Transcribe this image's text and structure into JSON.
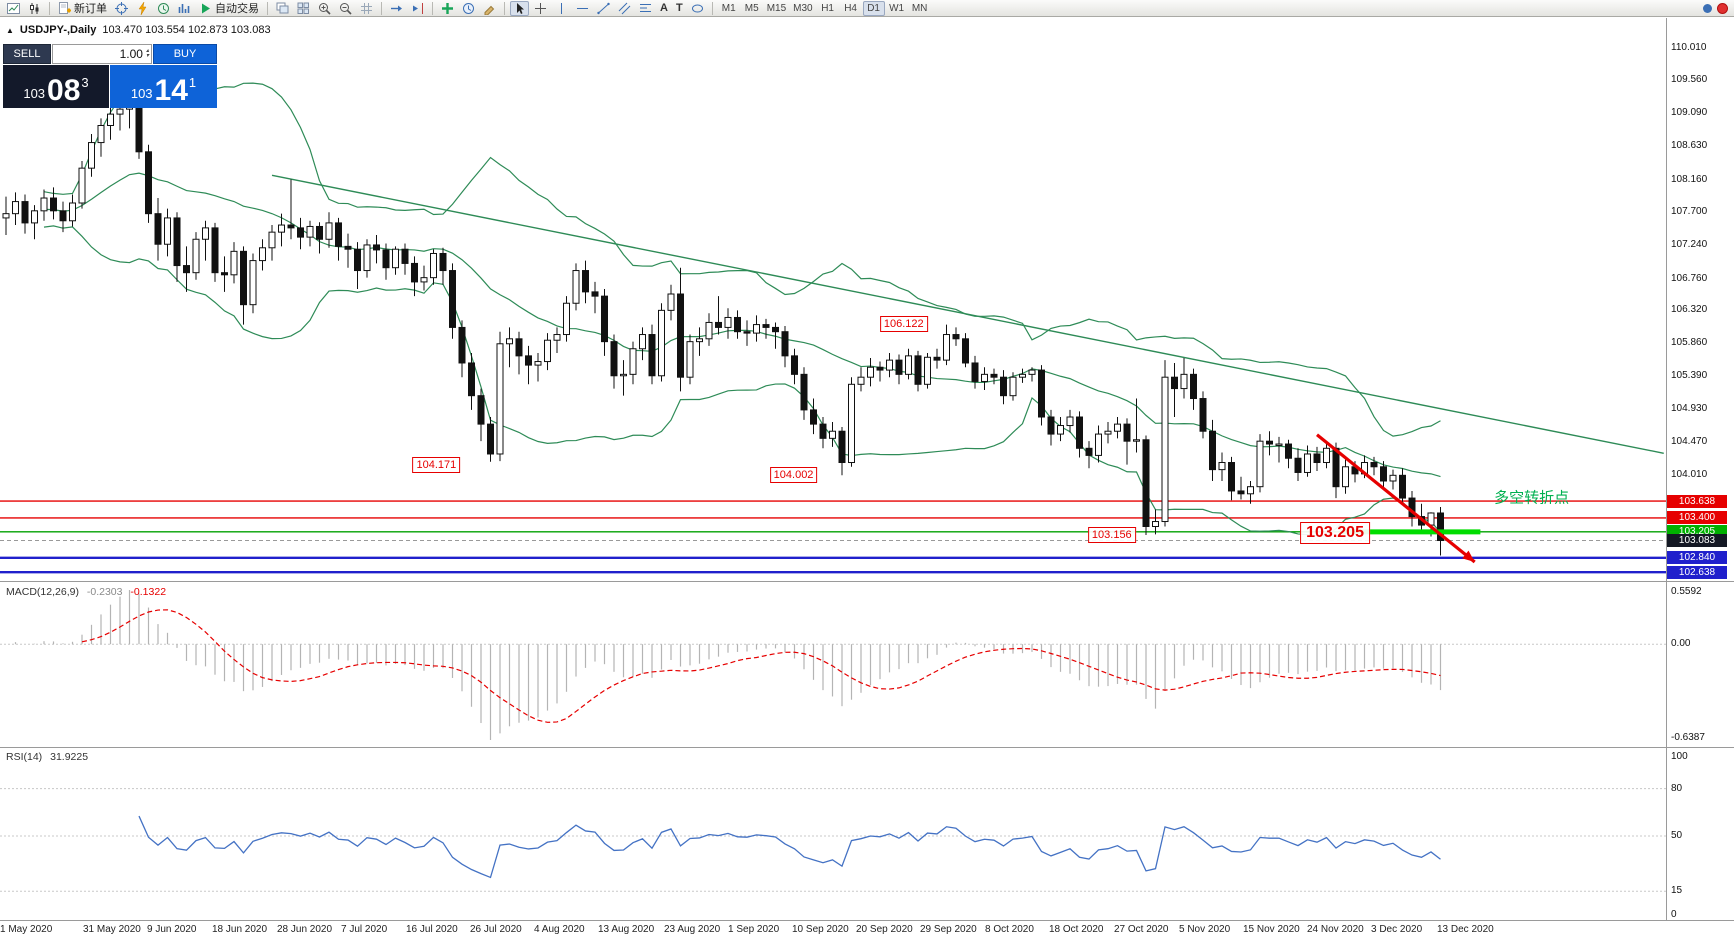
{
  "toolbar": {
    "new_order_label": "新订单",
    "autotrade_label": "自动交易",
    "text_tool_label": "A",
    "label_tool_label": "T",
    "timeframes": [
      "M1",
      "M5",
      "M15",
      "M30",
      "H1",
      "H4",
      "D1",
      "W1",
      "MN"
    ],
    "active_timeframe": "D1"
  },
  "chart_title": {
    "expand_icon": "▲",
    "symbol": "USDJPY-,Daily",
    "ohlc": "103.470 103.554 102.873 103.083"
  },
  "trade_panel": {
    "sell_label": "SELL",
    "buy_label": "BUY",
    "volume": "1.00",
    "sell_price_prefix": "103",
    "sell_price_main": "08",
    "sell_price_sup": "3",
    "buy_price_prefix": "103",
    "buy_price_main": "14",
    "buy_price_sup": "1"
  },
  "chart_data": {
    "type": "candlestick",
    "symbol": "USDJPY",
    "timeframe": "Daily",
    "current_ohlc": [
      103.47,
      103.554,
      102.873,
      103.083
    ],
    "y_axis_visible_range": [
      102.51,
      110.68
    ],
    "y_ticks": [
      "110.010",
      "109.560",
      "109.090",
      "108.630",
      "108.160",
      "107.700",
      "107.240",
      "106.760",
      "106.320",
      "105.860",
      "105.390",
      "104.930",
      "104.470",
      "104.010"
    ],
    "x_labels": [
      "1 May 2020",
      "31 May 2020",
      "9 Jun 2020",
      "18 Jun 2020",
      "28 Jun 2020",
      "7 Jul 2020",
      "16 Jul 2020",
      "26 Jul 2020",
      "4 Aug 2020",
      "13 Aug 2020",
      "23 Aug 2020",
      "1 Sep 2020",
      "10 Sep 2020",
      "20 Sep 2020",
      "29 Sep 2020",
      "8 Oct 2020",
      "18 Oct 2020",
      "27 Oct 2020",
      "5 Nov 2020",
      "15 Nov 2020",
      "24 Nov 2020",
      "3 Dec 2020",
      "13 Dec 2020"
    ],
    "candles": [
      [
        107.62,
        107.92,
        107.38,
        107.68
      ],
      [
        107.68,
        107.98,
        107.52,
        107.85
      ],
      [
        107.85,
        107.95,
        107.4,
        107.55
      ],
      [
        107.55,
        107.8,
        107.32,
        107.72
      ],
      [
        107.72,
        108.02,
        107.58,
        107.9
      ],
      [
        107.9,
        108.05,
        107.6,
        107.72
      ],
      [
        107.72,
        107.85,
        107.42,
        107.58
      ],
      [
        107.58,
        107.95,
        107.5,
        107.83
      ],
      [
        107.83,
        108.42,
        107.75,
        108.32
      ],
      [
        108.32,
        108.8,
        108.2,
        108.68
      ],
      [
        108.68,
        109.02,
        108.48,
        108.92
      ],
      [
        108.92,
        109.18,
        108.72,
        109.08
      ],
      [
        109.08,
        109.25,
        108.85,
        109.15
      ],
      [
        109.15,
        109.32,
        108.88,
        109.22
      ],
      [
        109.22,
        109.3,
        108.45,
        108.55
      ],
      [
        108.55,
        108.65,
        107.55,
        107.68
      ],
      [
        107.68,
        107.9,
        107.02,
        107.25
      ],
      [
        107.25,
        107.75,
        107.08,
        107.62
      ],
      [
        107.62,
        107.7,
        106.72,
        106.95
      ],
      [
        106.95,
        107.22,
        106.58,
        106.85
      ],
      [
        106.85,
        107.42,
        106.75,
        107.32
      ],
      [
        107.32,
        107.58,
        107.02,
        107.48
      ],
      [
        107.48,
        107.55,
        106.72,
        106.85
      ],
      [
        106.85,
        107.08,
        106.58,
        106.82
      ],
      [
        106.82,
        107.28,
        106.7,
        107.15
      ],
      [
        107.15,
        107.22,
        106.12,
        106.4
      ],
      [
        106.4,
        107.12,
        106.28,
        107.02
      ],
      [
        107.02,
        107.32,
        106.88,
        107.2
      ],
      [
        107.2,
        107.52,
        107.02,
        107.42
      ],
      [
        107.42,
        107.68,
        107.22,
        107.52
      ],
      [
        107.52,
        108.16,
        107.32,
        107.48
      ],
      [
        107.48,
        107.62,
        107.18,
        107.35
      ],
      [
        107.35,
        107.58,
        107.22,
        107.5
      ],
      [
        107.5,
        107.56,
        107.12,
        107.32
      ],
      [
        107.32,
        107.7,
        107.2,
        107.55
      ],
      [
        107.55,
        107.62,
        107.02,
        107.22
      ],
      [
        107.22,
        107.4,
        106.92,
        107.18
      ],
      [
        107.18,
        107.28,
        106.62,
        106.88
      ],
      [
        106.88,
        107.32,
        106.78,
        107.24
      ],
      [
        107.24,
        107.38,
        106.98,
        107.17
      ],
      [
        107.17,
        107.26,
        106.75,
        106.92
      ],
      [
        106.92,
        107.22,
        106.82,
        107.18
      ],
      [
        107.18,
        107.26,
        106.82,
        106.98
      ],
      [
        106.98,
        107.08,
        106.52,
        106.72
      ],
      [
        106.72,
        106.95,
        106.6,
        106.78
      ],
      [
        106.78,
        107.18,
        106.68,
        107.12
      ],
      [
        107.12,
        107.2,
        106.68,
        106.88
      ],
      [
        106.88,
        106.98,
        105.92,
        106.08
      ],
      [
        106.08,
        106.18,
        105.38,
        105.58
      ],
      [
        105.58,
        105.72,
        104.92,
        105.12
      ],
      [
        105.12,
        105.22,
        104.48,
        104.72
      ],
      [
        104.72,
        104.82,
        104.19,
        104.3
      ],
      [
        104.3,
        106.02,
        104.2,
        105.85
      ],
      [
        105.85,
        106.08,
        105.52,
        105.92
      ],
      [
        105.92,
        106.02,
        105.42,
        105.68
      ],
      [
        105.68,
        105.82,
        105.28,
        105.55
      ],
      [
        105.55,
        105.72,
        105.32,
        105.6
      ],
      [
        105.6,
        106.0,
        105.48,
        105.9
      ],
      [
        105.9,
        106.08,
        105.72,
        105.98
      ],
      [
        105.98,
        106.52,
        105.88,
        106.42
      ],
      [
        106.42,
        106.98,
        106.32,
        106.88
      ],
      [
        106.88,
        107.02,
        106.42,
        106.58
      ],
      [
        106.58,
        106.72,
        106.28,
        106.52
      ],
      [
        106.52,
        106.62,
        105.68,
        105.88
      ],
      [
        105.88,
        105.98,
        105.22,
        105.4
      ],
      [
        105.4,
        105.62,
        105.12,
        105.42
      ],
      [
        105.42,
        105.88,
        105.28,
        105.78
      ],
      [
        105.78,
        106.08,
        105.62,
        105.98
      ],
      [
        105.98,
        106.12,
        105.28,
        105.4
      ],
      [
        105.4,
        106.42,
        105.32,
        106.32
      ],
      [
        106.32,
        106.68,
        106.18,
        106.55
      ],
      [
        106.55,
        106.92,
        105.18,
        105.38
      ],
      [
        105.38,
        105.98,
        105.28,
        105.88
      ],
      [
        105.88,
        106.08,
        105.68,
        105.92
      ],
      [
        105.92,
        106.28,
        105.82,
        106.15
      ],
      [
        106.15,
        106.52,
        105.98,
        106.08
      ],
      [
        106.08,
        106.35,
        105.92,
        106.22
      ],
      [
        106.22,
        106.32,
        105.92,
        106.02
      ],
      [
        106.02,
        106.18,
        105.82,
        106.0
      ],
      [
        106.0,
        106.25,
        105.88,
        106.12
      ],
      [
        106.12,
        106.2,
        105.92,
        106.08
      ],
      [
        106.08,
        106.15,
        105.78,
        106.02
      ],
      [
        106.02,
        106.1,
        105.52,
        105.68
      ],
      [
        105.68,
        105.78,
        105.28,
        105.42
      ],
      [
        105.42,
        105.52,
        104.78,
        104.92
      ],
      [
        104.92,
        105.08,
        104.58,
        104.72
      ],
      [
        104.72,
        104.82,
        104.38,
        104.52
      ],
      [
        104.52,
        104.75,
        104.4,
        104.62
      ],
      [
        104.62,
        104.68,
        104.0,
        104.18
      ],
      [
        104.18,
        105.38,
        104.12,
        105.28
      ],
      [
        105.28,
        105.52,
        105.18,
        105.38
      ],
      [
        105.38,
        105.65,
        105.25,
        105.52
      ],
      [
        105.52,
        105.6,
        105.32,
        105.48
      ],
      [
        105.48,
        105.72,
        105.38,
        105.62
      ],
      [
        105.62,
        105.7,
        105.28,
        105.42
      ],
      [
        105.42,
        105.78,
        105.35,
        105.68
      ],
      [
        105.68,
        105.75,
        105.18,
        105.28
      ],
      [
        105.28,
        105.72,
        105.22,
        105.66
      ],
      [
        105.66,
        105.78,
        105.5,
        105.62
      ],
      [
        105.62,
        106.12,
        105.55,
        105.98
      ],
      [
        105.98,
        106.08,
        105.82,
        105.92
      ],
      [
        105.92,
        106.0,
        105.52,
        105.58
      ],
      [
        105.58,
        105.68,
        105.22,
        105.32
      ],
      [
        105.32,
        105.52,
        105.2,
        105.42
      ],
      [
        105.42,
        105.5,
        105.28,
        105.38
      ],
      [
        105.38,
        105.48,
        105.0,
        105.12
      ],
      [
        105.12,
        105.45,
        105.05,
        105.38
      ],
      [
        105.38,
        105.5,
        105.3,
        105.42
      ],
      [
        105.42,
        105.52,
        105.32,
        105.48
      ],
      [
        105.48,
        105.55,
        104.7,
        104.82
      ],
      [
        104.82,
        104.92,
        104.42,
        104.58
      ],
      [
        104.58,
        104.82,
        104.48,
        104.7
      ],
      [
        104.7,
        104.92,
        104.6,
        104.82
      ],
      [
        104.82,
        104.9,
        104.25,
        104.38
      ],
      [
        104.38,
        104.48,
        104.1,
        104.28
      ],
      [
        104.28,
        104.7,
        104.18,
        104.58
      ],
      [
        104.58,
        104.75,
        104.45,
        104.62
      ],
      [
        104.62,
        104.82,
        104.52,
        104.72
      ],
      [
        104.72,
        104.8,
        104.15,
        104.48
      ],
      [
        104.48,
        105.08,
        104.32,
        104.5
      ],
      [
        104.5,
        104.56,
        103.16,
        103.28
      ],
      [
        103.28,
        103.52,
        103.17,
        103.35
      ],
      [
        103.35,
        105.62,
        103.28,
        105.38
      ],
      [
        105.38,
        105.58,
        104.82,
        105.22
      ],
      [
        105.22,
        105.65,
        105.08,
        105.42
      ],
      [
        105.42,
        105.5,
        104.92,
        105.08
      ],
      [
        105.08,
        105.18,
        104.52,
        104.62
      ],
      [
        104.62,
        104.78,
        103.92,
        104.08
      ],
      [
        104.08,
        104.32,
        103.92,
        104.18
      ],
      [
        104.18,
        104.26,
        103.65,
        103.78
      ],
      [
        103.78,
        103.98,
        103.66,
        103.74
      ],
      [
        103.74,
        103.92,
        103.6,
        103.84
      ],
      [
        103.84,
        104.58,
        103.76,
        104.48
      ],
      [
        104.48,
        104.62,
        104.28,
        104.44
      ],
      [
        104.44,
        104.54,
        104.18,
        104.44
      ],
      [
        104.44,
        104.5,
        104.1,
        104.24
      ],
      [
        104.24,
        104.38,
        103.92,
        104.04
      ],
      [
        104.04,
        104.42,
        103.98,
        104.3
      ],
      [
        104.3,
        104.4,
        104.06,
        104.18
      ],
      [
        104.18,
        104.48,
        104.1,
        104.38
      ],
      [
        104.38,
        104.46,
        103.68,
        103.84
      ],
      [
        103.84,
        104.22,
        103.74,
        104.12
      ],
      [
        104.12,
        104.2,
        103.9,
        104.02
      ],
      [
        104.02,
        104.28,
        103.96,
        104.18
      ],
      [
        104.18,
        104.26,
        104.0,
        104.12
      ],
      [
        104.12,
        104.2,
        103.82,
        103.92
      ],
      [
        103.92,
        104.08,
        103.8,
        104.0
      ],
      [
        104.0,
        104.1,
        103.58,
        103.68
      ],
      [
        103.68,
        103.78,
        103.28,
        103.42
      ],
      [
        103.42,
        103.6,
        103.2,
        103.3
      ],
      [
        103.3,
        103.48,
        103.14,
        103.47
      ],
      [
        103.47,
        103.554,
        102.873,
        103.083
      ]
    ],
    "indicators": {
      "bollinger": {
        "period": 20,
        "deviation": 2,
        "color": "#2E8B57"
      },
      "macd": {
        "label": "MACD(12,26,9)",
        "values_text": [
          "-0.2303",
          "-0.1322"
        ],
        "axis_labels": [
          "0.5592",
          "0.00",
          "-0.6387"
        ],
        "histogram_color": "#b4b4b4",
        "signal_color": "#e60000"
      },
      "rsi": {
        "label": "RSI(14)",
        "value_text": "31.9225",
        "axis_labels": [
          "100",
          "80",
          "50",
          "15",
          "0"
        ],
        "levels": [
          80,
          50,
          15
        ],
        "line_color": "#4472C4"
      }
    },
    "overlays": {
      "hlines": [
        {
          "price": 103.638,
          "color": "#e60000",
          "width": 1.4,
          "dash": null
        },
        {
          "price": 103.4,
          "color": "#e60000",
          "width": 1.4,
          "dash": null
        },
        {
          "price": 103.205,
          "color": "#00a000",
          "width": 1.4,
          "dash": null
        },
        {
          "price": 103.083,
          "color": "#999999",
          "width": 1,
          "dash": "4 3"
        },
        {
          "price": 102.84,
          "color": "#2020cc",
          "width": 2.4,
          "dash": null
        },
        {
          "price": 102.638,
          "color": "#2020cc",
          "width": 2.4,
          "dash": null
        }
      ],
      "price_tags": [
        {
          "text": "103.638",
          "price": 103.638,
          "bg": "#e60000"
        },
        {
          "text": "103.400",
          "price": 103.4,
          "bg": "#e60000"
        },
        {
          "text": "103.205",
          "price": 103.205,
          "bg": "#00b000"
        },
        {
          "text": "103.083",
          "price": 103.083,
          "bg": "#141824"
        },
        {
          "text": "102.840",
          "price": 102.84,
          "bg": "#2020cc"
        },
        {
          "text": "102.638",
          "price": 102.638,
          "bg": "#2020cc"
        }
      ],
      "trendline": {
        "from_index": 28,
        "from_price": 108.22,
        "to_index": 174.5,
        "to_price": 104.31,
        "color": "#2E8B57"
      },
      "support_segment": {
        "from_index": 140.4,
        "to_index": 155.2,
        "price": 103.205,
        "color": "#00dd00",
        "width": 5
      },
      "arrow": {
        "from_index": 138,
        "from_price": 104.57,
        "to_index": 154.6,
        "to_price": 102.78,
        "color": "#e60000"
      },
      "callouts": [
        {
          "text": "104.171",
          "index": 45.3,
          "price": 104.15,
          "size": "small"
        },
        {
          "text": "106.122",
          "index": 94.5,
          "price": 106.13,
          "size": "small"
        },
        {
          "text": "104.002",
          "index": 82.9,
          "price": 104.0,
          "size": "small"
        },
        {
          "text": "103.156",
          "index": 116.4,
          "price": 103.16,
          "size": "small"
        },
        {
          "text": "103.205",
          "index": 139.9,
          "price": 103.19,
          "size": "large"
        }
      ],
      "annotation": {
        "text": "多空转折点",
        "index": 160.6,
        "price": 103.7,
        "color": "#00b050"
      }
    }
  }
}
